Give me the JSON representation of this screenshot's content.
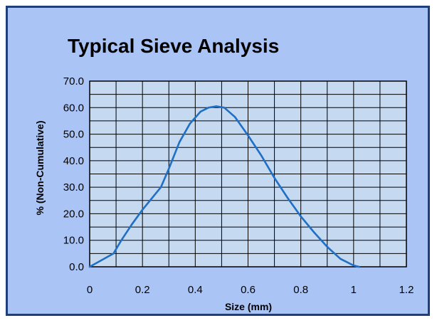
{
  "chart_data": {
    "type": "line",
    "title": "Typical Sieve Analysis",
    "xlabel": "Size (mm)",
    "ylabel": "% (Non-Cumulative)",
    "xlim": [
      0,
      1.2
    ],
    "ylim": [
      0,
      70
    ],
    "xticks": [
      0,
      0.2,
      0.4,
      0.6,
      0.8,
      1,
      1.2
    ],
    "xtick_labels": [
      "0",
      "0.2",
      "0.4",
      "0.6",
      "0.8",
      "1",
      "1.2"
    ],
    "xgrid": [
      0,
      0.1,
      0.2,
      0.3,
      0.4,
      0.5,
      0.6,
      0.7,
      0.8,
      0.9,
      1.0,
      1.1,
      1.2
    ],
    "yticks": [
      0,
      10,
      20,
      30,
      40,
      50,
      60,
      70
    ],
    "ytick_labels": [
      "0.0",
      "10.0",
      "20.0",
      "30.0",
      "40.0",
      "50.0",
      "60.0",
      "70.0"
    ],
    "ygrid": [
      0,
      5,
      10,
      15,
      20,
      25,
      30,
      35,
      40,
      45,
      50,
      55,
      60,
      65,
      70
    ],
    "grid": true,
    "legend": false,
    "series": [
      {
        "x": [
          0,
          0.09,
          0.12,
          0.16,
          0.2,
          0.27,
          0.3,
          0.34,
          0.38,
          0.42,
          0.45,
          0.48,
          0.51,
          0.55,
          0.6,
          0.65,
          0.7,
          0.75,
          0.8,
          0.85,
          0.9,
          0.95,
          1.0,
          1.02
        ],
        "y": [
          0,
          5,
          10,
          16,
          21.5,
          30,
          37,
          47,
          54,
          58.5,
          60,
          60.5,
          60,
          56.5,
          49.5,
          42,
          33.5,
          26,
          19,
          13,
          7.5,
          3,
          0.5,
          0
        ]
      }
    ],
    "colors": {
      "frame_background": "#a9c4f5",
      "frame_border": "#1f3f7a",
      "plot_background": "#c5d9f1",
      "grid": "#000000",
      "line": "#1f6fc5"
    }
  }
}
